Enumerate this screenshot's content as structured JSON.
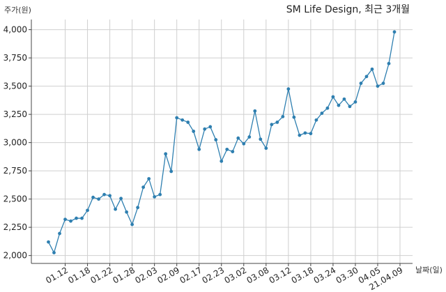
{
  "chart_data": {
    "type": "line",
    "title": "SM Life Design, 최근 3개월",
    "ylabel": "주가(원)",
    "xlabel": "날짜(일)",
    "ylim": [
      1930,
      4090
    ],
    "yticks": [
      2000,
      2250,
      2500,
      2750,
      3000,
      3250,
      3500,
      3750,
      4000
    ],
    "ytick_labels": [
      "2,000",
      "2,250",
      "2,500",
      "2,750",
      "3,000",
      "3,250",
      "3,500",
      "3,750",
      "4,000"
    ],
    "xticks": [
      "01.12",
      "01.18",
      "01.22",
      "01.28",
      "02.03",
      "02.09",
      "02.17",
      "02.23",
      "03.02",
      "03.08",
      "03.12",
      "03.18",
      "03.24",
      "03.30",
      "04.05",
      "21.04.09"
    ],
    "xtick_index": [
      3,
      7,
      11,
      15,
      19,
      23,
      27,
      31,
      35,
      39,
      43,
      47,
      51,
      55,
      59,
      63
    ],
    "grid": true,
    "color": "#2e7fb0",
    "series": [
      {
        "name": "",
        "values": [
          2120,
          2025,
          2195,
          2320,
          2305,
          2330,
          2330,
          2400,
          2515,
          2500,
          2540,
          2530,
          2410,
          2505,
          2385,
          2275,
          2425,
          2605,
          2680,
          2520,
          2540,
          2900,
          2745,
          3220,
          3200,
          3180,
          3100,
          2940,
          3120,
          3140,
          3025,
          2835,
          2940,
          2920,
          3040,
          2990,
          3050,
          3280,
          3030,
          2950,
          3160,
          3180,
          3230,
          3475,
          3225,
          3065,
          3085,
          3080,
          3200,
          3260,
          3305,
          3405,
          3330,
          3385,
          3320,
          3360,
          3525,
          3585,
          3650,
          3500,
          3525,
          3700,
          3980
        ]
      }
    ]
  }
}
